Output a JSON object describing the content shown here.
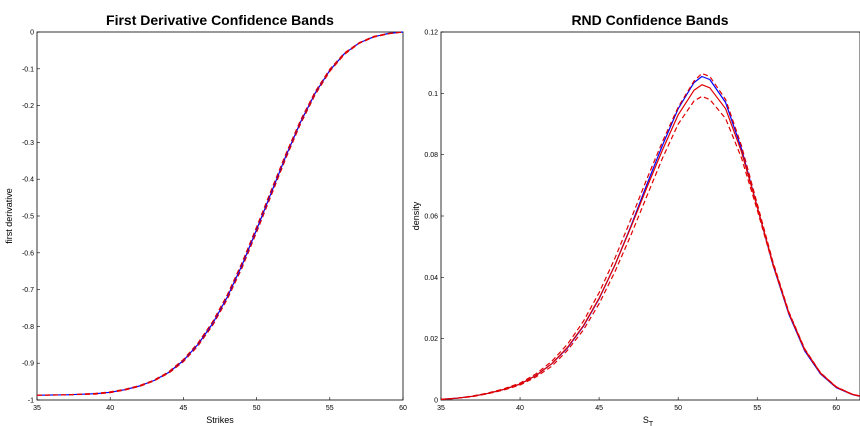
{
  "chart_data": [
    {
      "type": "line",
      "title": "First Derivative Confidence Bands",
      "xlabel": "Strikes",
      "ylabel": "first derivative",
      "xlim": [
        35,
        60
      ],
      "ylim": [
        -1,
        0
      ],
      "xticks": [
        "35",
        "40",
        "45",
        "50",
        "55",
        "60"
      ],
      "yticks": [
        "0",
        "-0.1",
        "-0.2",
        "-0.3",
        "-0.4",
        "-0.5",
        "-0.6",
        "-0.7",
        "-0.8",
        "-0.9",
        "-1"
      ],
      "grid": false,
      "colors": {
        "estimate": "#0000ff",
        "bands": "#e00000"
      },
      "x": [
        35,
        37,
        39,
        40,
        41,
        42,
        43,
        44,
        45,
        46,
        47,
        48,
        49,
        50,
        51,
        52,
        53,
        54,
        55,
        56,
        57,
        58,
        59,
        60
      ],
      "series": [
        {
          "style": "solid",
          "color": "#0000ff",
          "values": [
            -0.987,
            -0.986,
            -0.983,
            -0.979,
            -0.972,
            -0.962,
            -0.947,
            -0.925,
            -0.893,
            -0.849,
            -0.792,
            -0.72,
            -0.634,
            -0.537,
            -0.437,
            -0.337,
            -0.245,
            -0.166,
            -0.104,
            -0.059,
            -0.03,
            -0.013,
            -0.004,
            0.0
          ]
        },
        {
          "style": "dashed",
          "color": "#e00000",
          "values": [
            -0.987,
            -0.986,
            -0.982,
            -0.978,
            -0.971,
            -0.961,
            -0.946,
            -0.923,
            -0.89,
            -0.845,
            -0.787,
            -0.714,
            -0.627,
            -0.53,
            -0.43,
            -0.331,
            -0.24,
            -0.162,
            -0.101,
            -0.057,
            -0.029,
            -0.012,
            -0.004,
            0.0
          ]
        },
        {
          "style": "dashed",
          "color": "#e00000",
          "values": [
            -0.987,
            -0.986,
            -0.984,
            -0.98,
            -0.973,
            -0.963,
            -0.948,
            -0.927,
            -0.896,
            -0.853,
            -0.797,
            -0.726,
            -0.641,
            -0.544,
            -0.444,
            -0.343,
            -0.25,
            -0.17,
            -0.107,
            -0.061,
            -0.031,
            -0.014,
            -0.005,
            0.0
          ]
        }
      ]
    },
    {
      "type": "line",
      "title": "RND Confidence Bands",
      "xlabel": "S",
      "xlabel_sub": "T",
      "ylabel": "density",
      "xlim": [
        35,
        61.5
      ],
      "ylim": [
        0,
        0.12
      ],
      "xticks": [
        "35",
        "40",
        "45",
        "50",
        "55",
        "60"
      ],
      "yticks": [
        "0",
        "0.02",
        "0.04",
        "0.06",
        "0.08",
        "0.1",
        "0.12"
      ],
      "grid": false,
      "colors": {
        "estimate": "#0000ff",
        "bands": "#e00000"
      },
      "x": [
        35,
        36,
        37,
        38,
        39,
        40,
        41,
        42,
        43,
        44,
        45,
        46,
        47,
        48,
        49,
        50,
        51,
        51.5,
        52,
        53,
        54,
        55,
        56,
        57,
        58,
        59,
        60,
        61,
        61.5
      ],
      "series": [
        {
          "style": "solid",
          "color": "#0000ff",
          "values": [
            0.0002,
            0.0006,
            0.0012,
            0.0022,
            0.0035,
            0.0052,
            0.008,
            0.0118,
            0.017,
            0.024,
            0.033,
            0.044,
            0.0565,
            0.07,
            0.083,
            0.095,
            0.1035,
            0.1055,
            0.1045,
            0.097,
            0.082,
            0.063,
            0.044,
            0.028,
            0.016,
            0.0085,
            0.004,
            0.0018,
            0.0012
          ]
        },
        {
          "style": "solid",
          "color": "#e00000",
          "values": [
            0.0002,
            0.0006,
            0.0012,
            0.0022,
            0.0035,
            0.0052,
            0.008,
            0.0118,
            0.0172,
            0.0242,
            0.0332,
            0.044,
            0.0562,
            0.069,
            0.0815,
            0.093,
            0.101,
            0.1028,
            0.1018,
            0.095,
            0.081,
            0.063,
            0.0445,
            0.0285,
            0.0165,
            0.0088,
            0.0042,
            0.0019,
            0.0013
          ]
        },
        {
          "style": "dashed",
          "color": "#e00000",
          "values": [
            0.0002,
            0.0006,
            0.0013,
            0.0023,
            0.0037,
            0.0055,
            0.0085,
            0.0126,
            0.0182,
            0.0256,
            0.035,
            0.0462,
            0.0588,
            0.0718,
            0.0842,
            0.0955,
            0.104,
            0.1065,
            0.1055,
            0.098,
            0.083,
            0.064,
            0.045,
            0.0288,
            0.0167,
            0.0089,
            0.0043,
            0.0019,
            0.0013
          ]
        },
        {
          "style": "dashed",
          "color": "#e00000",
          "values": [
            0.0002,
            0.0006,
            0.0011,
            0.0021,
            0.0033,
            0.0049,
            0.0075,
            0.011,
            0.0162,
            0.0228,
            0.0314,
            0.0418,
            0.0536,
            0.0662,
            0.0788,
            0.09,
            0.0975,
            0.099,
            0.098,
            0.0918,
            0.079,
            0.062,
            0.044,
            0.0282,
            0.0163,
            0.0087,
            0.0041,
            0.0018,
            0.0012
          ]
        }
      ]
    }
  ]
}
